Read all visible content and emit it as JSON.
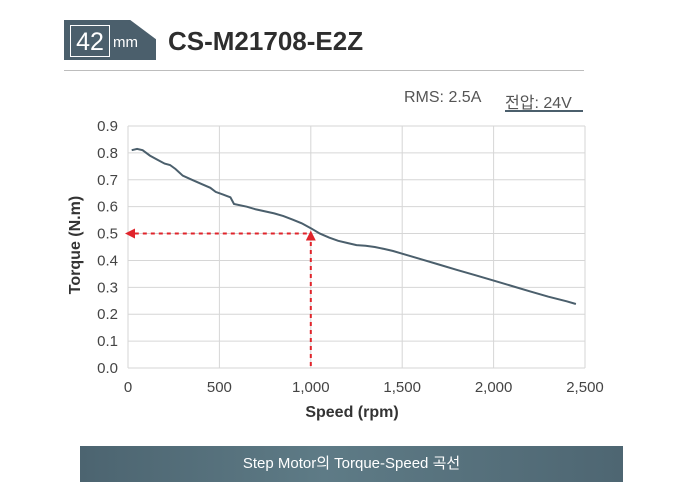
{
  "header": {
    "size_value": "42",
    "size_unit": "mm",
    "model": "CS-M21708-E2Z"
  },
  "specs": {
    "rms": "RMS: 2.5A",
    "voltage": "전압: 24V"
  },
  "footer": {
    "caption": "Step Motor의 Torque-Speed 곡선"
  },
  "colors": {
    "badge": "#4b5f6c",
    "curve": "#4b5f6c",
    "marker": "#e0242b"
  },
  "chart_data": {
    "type": "line",
    "title": "",
    "xlabel": "Speed (rpm)",
    "ylabel": "Torque (N.m)",
    "xlim": [
      0,
      2500
    ],
    "ylim": [
      0,
      0.9
    ],
    "xticks": [
      0,
      500,
      1000,
      1500,
      2000,
      2500
    ],
    "xtick_labels": [
      "0",
      "500",
      "1,000",
      "1,500",
      "2,000",
      "2,500"
    ],
    "yticks": [
      0,
      0.1,
      0.2,
      0.3,
      0.4,
      0.5,
      0.6,
      0.7,
      0.8,
      0.9
    ],
    "ytick_labels": [
      "0.0",
      "0.1",
      "0.2",
      "0.3",
      "0.4",
      "0.5",
      "0.6",
      "0.7",
      "0.8",
      "0.9"
    ],
    "grid": true,
    "series": [
      {
        "x": [
          20,
          50,
          80,
          120,
          160,
          200,
          230,
          260,
          300,
          350,
          400,
          450,
          480,
          520,
          540,
          560,
          580,
          650,
          700,
          800,
          850,
          900,
          950,
          1000,
          1050,
          1100,
          1150,
          1200,
          1250,
          1300,
          1350,
          1400,
          1450,
          1500,
          1600,
          1700,
          1800,
          1900,
          2000,
          2100,
          2200,
          2300,
          2400,
          2450
        ],
        "y": [
          0.81,
          0.815,
          0.81,
          0.79,
          0.775,
          0.76,
          0.755,
          0.74,
          0.715,
          0.7,
          0.685,
          0.67,
          0.655,
          0.645,
          0.64,
          0.635,
          0.61,
          0.6,
          0.59,
          0.575,
          0.565,
          0.552,
          0.538,
          0.52,
          0.5,
          0.485,
          0.473,
          0.465,
          0.457,
          0.455,
          0.45,
          0.443,
          0.435,
          0.425,
          0.405,
          0.385,
          0.365,
          0.345,
          0.325,
          0.305,
          0.285,
          0.265,
          0.248,
          0.238
        ]
      }
    ],
    "annotation": {
      "x": 1000,
      "y": 0.5,
      "style": "dashed-arrows"
    }
  }
}
